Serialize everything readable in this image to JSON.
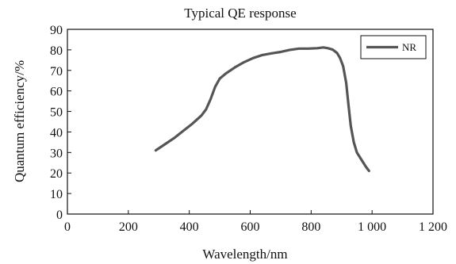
{
  "chart_data": {
    "type": "line",
    "title": "Typical QE response",
    "xlabel": "Wavelength/nm",
    "ylabel": "Quantum efficiency/%",
    "xlim": [
      0,
      1200
    ],
    "ylim": [
      0,
      90
    ],
    "xticks": [
      0,
      200,
      400,
      600,
      800,
      1000,
      1200
    ],
    "xtick_labels": [
      "0",
      "200",
      "400",
      "600",
      "800",
      "1 000",
      "1 200"
    ],
    "yticks": [
      0,
      10,
      20,
      30,
      40,
      50,
      60,
      70,
      80,
      90
    ],
    "ytick_labels": [
      "0",
      "10",
      "20",
      "30",
      "40",
      "50",
      "60",
      "70",
      "80",
      "90"
    ],
    "grid": false,
    "legend_position": "top-right",
    "series": [
      {
        "name": "NR",
        "color": "#555555",
        "x": [
          290,
          320,
          350,
          380,
          410,
          440,
          455,
          470,
          485,
          500,
          520,
          550,
          580,
          610,
          640,
          670,
          700,
          730,
          760,
          790,
          820,
          840,
          855,
          870,
          885,
          895,
          905,
          915,
          922,
          930,
          940,
          950,
          965,
          980,
          990
        ],
        "y": [
          31,
          34,
          37,
          40.5,
          44,
          48,
          51,
          56,
          62,
          66,
          68.5,
          71.5,
          74,
          76,
          77.5,
          78.3,
          79,
          80,
          80.6,
          80.6,
          80.8,
          81.2,
          80.8,
          80.2,
          78.5,
          76,
          72,
          64,
          54,
          43,
          35,
          30,
          26.5,
          23,
          21
        ]
      }
    ]
  }
}
